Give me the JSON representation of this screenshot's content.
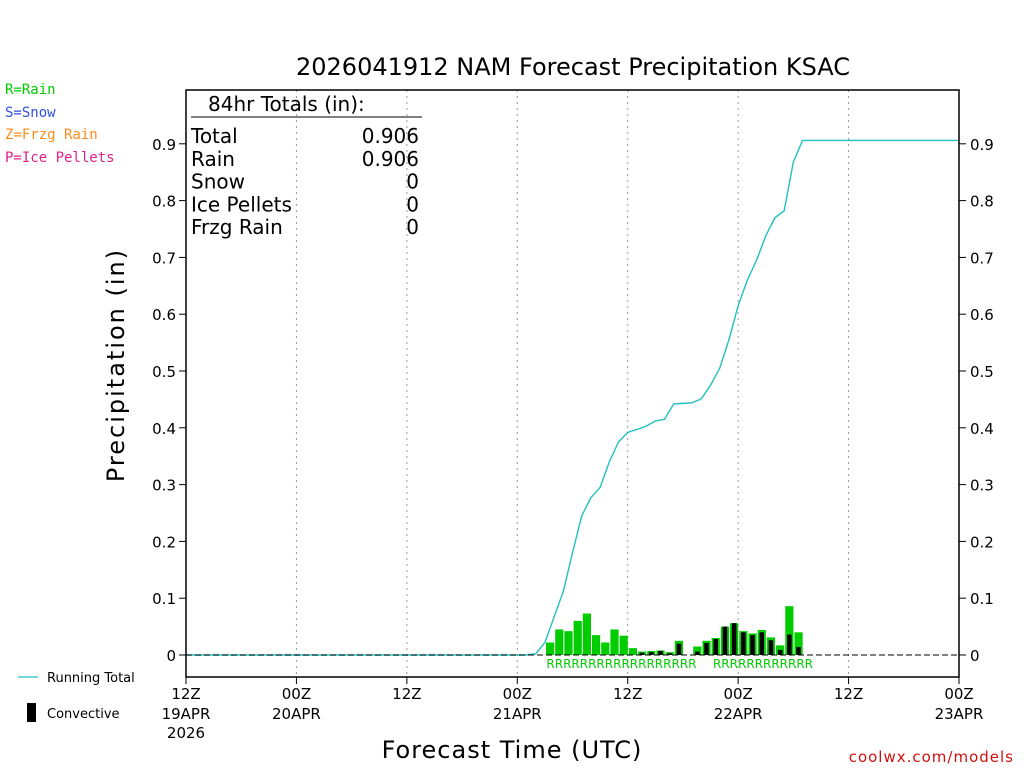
{
  "chart_data": {
    "type": "bar",
    "title": "2026041912 NAM Forecast Precipitation KSAC",
    "xlabel": "Forecast Time (UTC)",
    "ylabel": "Precipitation (in)",
    "ylim": [
      0,
      1.0
    ],
    "xlim_hours": [
      0,
      84
    ],
    "y_ticks": [
      "0",
      "0.1",
      "0.2",
      "0.3",
      "0.4",
      "0.5",
      "0.6",
      "0.7",
      "0.8",
      "0.9"
    ],
    "y_tick_values": [
      0,
      0.1,
      0.2,
      0.3,
      0.4,
      0.5,
      0.6,
      0.7,
      0.8,
      0.9
    ],
    "x_ticks": [
      {
        "hour": 0,
        "label": "12Z",
        "date": "19APR",
        "year": "2026"
      },
      {
        "hour": 12,
        "label": "00Z",
        "date": "20APR",
        "year": ""
      },
      {
        "hour": 24,
        "label": "12Z",
        "date": "",
        "year": ""
      },
      {
        "hour": 36,
        "label": "00Z",
        "date": "21APR",
        "year": ""
      },
      {
        "hour": 48,
        "label": "12Z",
        "date": "",
        "year": ""
      },
      {
        "hour": 60,
        "label": "00Z",
        "date": "22APR",
        "year": ""
      },
      {
        "hour": 72,
        "label": "12Z",
        "date": "",
        "year": ""
      },
      {
        "hour": 84,
        "label": "00Z",
        "date": "23APR",
        "year": ""
      }
    ],
    "bar_hours": [
      40,
      41,
      42,
      43,
      44,
      45,
      46,
      47,
      48,
      49,
      50,
      51,
      52,
      53,
      54,
      55,
      56,
      57,
      58,
      59,
      60,
      61,
      62,
      63,
      64,
      65,
      66,
      67,
      68,
      69
    ],
    "rain_values": [
      0.022,
      0.045,
      0.042,
      0.06,
      0.073,
      0.035,
      0.022,
      0.045,
      0.034,
      0.012,
      0.006,
      0.007,
      0.008,
      0.005,
      0.025,
      0.0,
      0.015,
      0.025,
      0.03,
      0.05,
      0.056,
      0.042,
      0.038,
      0.044,
      0.031,
      0.017,
      0.086,
      0.04,
      0.0,
      0.0
    ],
    "convective_values": [
      0,
      0,
      0,
      0,
      0,
      0,
      0,
      0,
      0,
      0,
      0.004,
      0.005,
      0.007,
      0.003,
      0.02,
      0,
      0.006,
      0.021,
      0.028,
      0.05,
      0.056,
      0.04,
      0.035,
      0.04,
      0.026,
      0.009,
      0.036,
      0.014,
      0,
      0
    ],
    "running_total": {
      "hours": [
        0,
        37,
        38,
        39,
        40,
        41,
        42,
        43,
        44,
        45,
        46,
        47,
        48,
        49,
        50,
        51,
        52,
        53,
        54,
        55,
        56,
        57,
        58,
        59,
        60,
        61,
        62,
        63,
        64,
        65,
        66,
        67,
        68,
        84
      ],
      "values": [
        0,
        0,
        0.002,
        0.022,
        0.067,
        0.112,
        0.18,
        0.245,
        0.277,
        0.295,
        0.34,
        0.375,
        0.392,
        0.397,
        0.403,
        0.412,
        0.415,
        0.442,
        0.443,
        0.444,
        0.451,
        0.475,
        0.505,
        0.555,
        0.615,
        0.66,
        0.695,
        0.738,
        0.77,
        0.782,
        0.868,
        0.906,
        0.906,
        0.906
      ]
    },
    "ptype_row": [
      {
        "start_hour": 39.6,
        "text": "RRRRRRRRRRRRRRRRRR"
      },
      {
        "start_hour": 57.7,
        "text": "RRRRRRRRRRRR"
      }
    ],
    "series": [
      {
        "name": "Rain",
        "color": "#00cc00"
      },
      {
        "name": "Convective",
        "color": "#000000"
      },
      {
        "name": "Running Total",
        "color": "#20c0c0"
      }
    ]
  },
  "ptype_legend": [
    {
      "text": "R=Rain",
      "color": "#00cc00"
    },
    {
      "text": "S=Snow",
      "color": "#3050e0"
    },
    {
      "text": "Z=Frzg Rain",
      "color": "#ff8c1a"
    },
    {
      "text": "P=Ice Pellets",
      "color": "#e0208a"
    }
  ],
  "totals_box": {
    "header": "84hr Totals (in):",
    "rows": [
      {
        "label": "Total",
        "value": "0.906"
      },
      {
        "label": "Rain",
        "value": "0.906"
      },
      {
        "label": "Snow",
        "value": "0"
      },
      {
        "label": "Ice Pellets",
        "value": "0"
      },
      {
        "label": "Frzg Rain",
        "value": "0"
      }
    ]
  },
  "series_legend": {
    "running_total": "Running Total",
    "convective": "Convective"
  },
  "credit": "coolwx.com/models",
  "colors": {
    "rain": "#00cc00",
    "convective": "#000000",
    "running_total": "#20c0c0",
    "credit": "#d01010"
  }
}
